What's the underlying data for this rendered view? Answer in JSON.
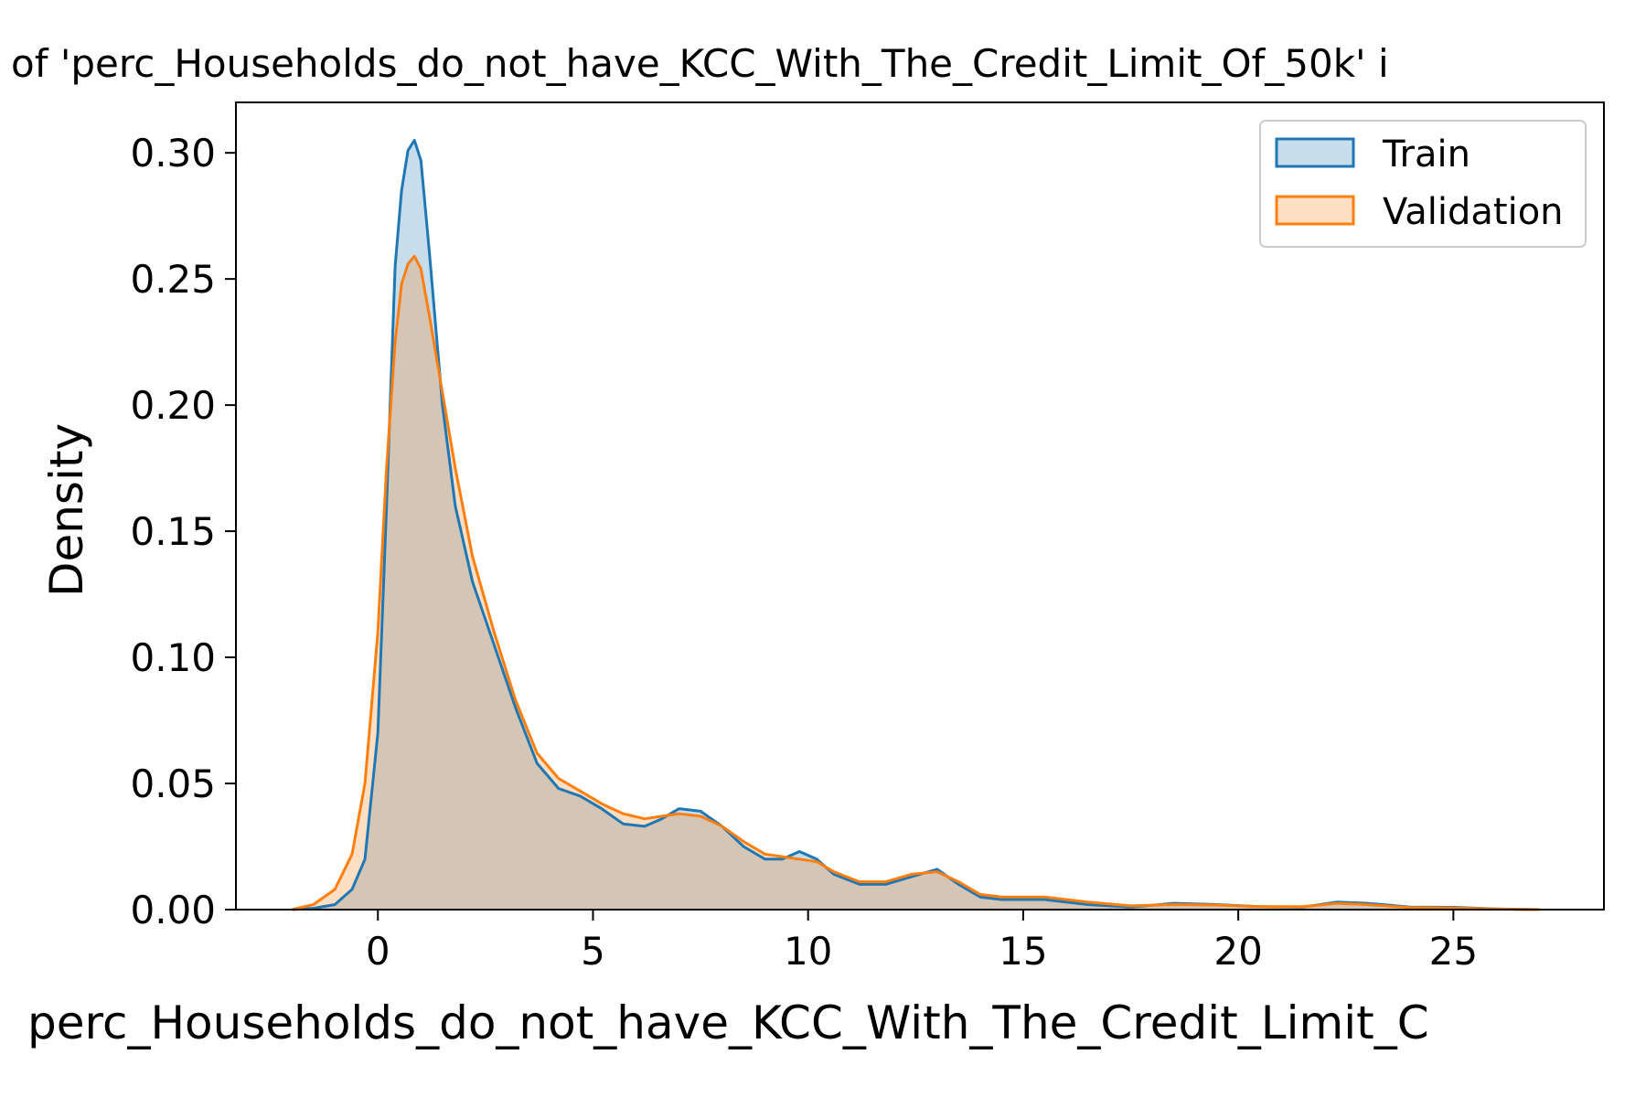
{
  "chart_data": {
    "type": "area",
    "title": "of 'perc_Households_do_not_have_KCC_With_The_Credit_Limit_Of_50k' i",
    "xlabel": "perc_Households_do_not_have_KCC_With_The_Credit_Limit_C",
    "ylabel": "Density",
    "xlim": [
      -3.3,
      28.5
    ],
    "ylim": [
      0,
      0.32
    ],
    "xticks": [
      0,
      5,
      10,
      15,
      20,
      25
    ],
    "xtick_labels": [
      "0",
      "5",
      "10",
      "15",
      "20",
      "25"
    ],
    "yticks": [
      0.0,
      0.05,
      0.1,
      0.15,
      0.2,
      0.25,
      0.3
    ],
    "ytick_labels": [
      "0.00",
      "0.05",
      "0.10",
      "0.15",
      "0.20",
      "0.25",
      "0.30"
    ],
    "grid": false,
    "legend_position": "top-right",
    "series": [
      {
        "name": "Train",
        "color": "#1f77b4",
        "fill": "#1f77b4",
        "fill_opacity": 0.25,
        "x": [
          -2.0,
          -1.5,
          -1.0,
          -0.6,
          -0.3,
          0.0,
          0.2,
          0.4,
          0.55,
          0.7,
          0.85,
          1.0,
          1.2,
          1.5,
          1.8,
          2.2,
          2.7,
          3.2,
          3.7,
          4.2,
          4.7,
          5.2,
          5.7,
          6.2,
          6.6,
          7.0,
          7.5,
          8.0,
          8.5,
          9.0,
          9.4,
          9.8,
          10.2,
          10.6,
          11.2,
          11.8,
          12.4,
          13.0,
          13.5,
          14.0,
          14.5,
          15.0,
          15.5,
          16.5,
          17.5,
          18.5,
          19.5,
          20.5,
          21.5,
          22.3,
          23.0,
          24.0,
          25.0,
          26.0,
          27.0
        ],
        "y": [
          0.0,
          0.0005,
          0.002,
          0.008,
          0.02,
          0.07,
          0.16,
          0.255,
          0.285,
          0.301,
          0.305,
          0.297,
          0.26,
          0.2,
          0.16,
          0.13,
          0.105,
          0.08,
          0.058,
          0.048,
          0.045,
          0.04,
          0.034,
          0.033,
          0.036,
          0.04,
          0.039,
          0.033,
          0.025,
          0.02,
          0.02,
          0.023,
          0.02,
          0.014,
          0.01,
          0.01,
          0.013,
          0.016,
          0.01,
          0.005,
          0.004,
          0.004,
          0.004,
          0.002,
          0.001,
          0.0025,
          0.002,
          0.0012,
          0.001,
          0.003,
          0.0025,
          0.001,
          0.0009,
          0.0003,
          0.0
        ]
      },
      {
        "name": "Validation",
        "color": "#ff7f0e",
        "fill": "#ff7f0e",
        "fill_opacity": 0.25,
        "x": [
          -2.0,
          -1.5,
          -1.0,
          -0.6,
          -0.3,
          0.0,
          0.2,
          0.4,
          0.55,
          0.7,
          0.85,
          1.0,
          1.2,
          1.5,
          1.8,
          2.2,
          2.7,
          3.2,
          3.7,
          4.2,
          4.7,
          5.2,
          5.7,
          6.2,
          6.6,
          7.0,
          7.5,
          8.0,
          8.5,
          9.0,
          9.4,
          9.8,
          10.2,
          10.6,
          11.2,
          11.8,
          12.4,
          13.0,
          13.5,
          14.0,
          14.5,
          15.0,
          15.5,
          16.5,
          17.5,
          18.5,
          19.5,
          20.5,
          21.5,
          22.3,
          23.0,
          24.0,
          25.0,
          26.0,
          27.0
        ],
        "y": [
          0.0,
          0.002,
          0.008,
          0.022,
          0.05,
          0.11,
          0.175,
          0.225,
          0.248,
          0.256,
          0.259,
          0.254,
          0.235,
          0.205,
          0.175,
          0.14,
          0.11,
          0.083,
          0.062,
          0.052,
          0.047,
          0.042,
          0.038,
          0.036,
          0.037,
          0.038,
          0.037,
          0.033,
          0.027,
          0.022,
          0.021,
          0.02,
          0.019,
          0.015,
          0.011,
          0.011,
          0.014,
          0.015,
          0.011,
          0.006,
          0.005,
          0.005,
          0.005,
          0.003,
          0.0015,
          0.002,
          0.0018,
          0.0012,
          0.0012,
          0.0025,
          0.002,
          0.0008,
          0.0006,
          0.0002,
          0.0
        ]
      }
    ]
  }
}
